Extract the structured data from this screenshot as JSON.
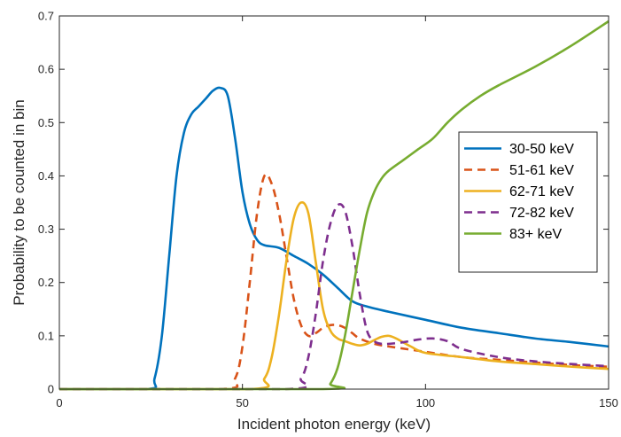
{
  "chart_data": {
    "type": "line",
    "title": "",
    "xlabel": "Incident photon energy (keV)",
    "ylabel": "Probability to be counted in bin",
    "xlim": [
      0,
      150
    ],
    "ylim": [
      0,
      0.7
    ],
    "xticks": [
      0,
      50,
      100,
      150
    ],
    "yticks": [
      0,
      0.1,
      0.2,
      0.3,
      0.4,
      0.5,
      0.6,
      0.7
    ],
    "grid": false,
    "legend_position": "right",
    "series": [
      {
        "name": "30-50 keV",
        "color": "#0072BD",
        "dash": "solid",
        "x": [
          0,
          24,
          26,
          28,
          30,
          32,
          34,
          36,
          38,
          40,
          42,
          44,
          46,
          48,
          50,
          52,
          54,
          56,
          60,
          64,
          68,
          72,
          76,
          80,
          84,
          90,
          100,
          110,
          120,
          130,
          140,
          150
        ],
        "y": [
          0,
          0,
          0.02,
          0.1,
          0.25,
          0.4,
          0.48,
          0.515,
          0.53,
          0.545,
          0.56,
          0.565,
          0.55,
          0.47,
          0.37,
          0.31,
          0.28,
          0.27,
          0.265,
          0.25,
          0.235,
          0.215,
          0.19,
          0.165,
          0.155,
          0.145,
          0.13,
          0.115,
          0.105,
          0.095,
          0.088,
          0.08
        ]
      },
      {
        "name": "51-61 keV",
        "color": "#D95319",
        "dash": "dashed",
        "x": [
          0,
          44,
          48,
          50,
          52,
          54,
          56,
          58,
          60,
          62,
          64,
          66,
          68,
          70,
          72,
          74,
          76,
          78,
          80,
          82,
          86,
          90,
          100,
          110,
          120,
          130,
          140,
          150
        ],
        "y": [
          0,
          0,
          0.02,
          0.08,
          0.2,
          0.33,
          0.4,
          0.385,
          0.33,
          0.25,
          0.17,
          0.12,
          0.1,
          0.105,
          0.115,
          0.12,
          0.12,
          0.115,
          0.105,
          0.095,
          0.085,
          0.08,
          0.07,
          0.06,
          0.055,
          0.05,
          0.045,
          0.042
        ]
      },
      {
        "name": "62-71 keV",
        "color": "#EDB120",
        "dash": "solid",
        "x": [
          0,
          52,
          56,
          58,
          60,
          62,
          64,
          66,
          68,
          70,
          72,
          74,
          76,
          78,
          80,
          82,
          84,
          86,
          88,
          90,
          92,
          96,
          100,
          110,
          120,
          130,
          140,
          150
        ],
        "y": [
          0,
          0,
          0.02,
          0.06,
          0.14,
          0.24,
          0.32,
          0.35,
          0.33,
          0.24,
          0.15,
          0.11,
          0.095,
          0.09,
          0.085,
          0.082,
          0.085,
          0.092,
          0.098,
          0.1,
          0.095,
          0.08,
          0.068,
          0.06,
          0.052,
          0.047,
          0.042,
          0.038
        ]
      },
      {
        "name": "72-82 keV",
        "color": "#7E2F8E",
        "dash": "dashed",
        "x": [
          0,
          62,
          66,
          68,
          70,
          72,
          74,
          76,
          78,
          80,
          82,
          84,
          86,
          88,
          90,
          94,
          98,
          102,
          106,
          110,
          120,
          130,
          140,
          150
        ],
        "y": [
          0,
          0,
          0.02,
          0.06,
          0.14,
          0.24,
          0.31,
          0.345,
          0.335,
          0.27,
          0.18,
          0.11,
          0.09,
          0.085,
          0.085,
          0.088,
          0.093,
          0.095,
          0.09,
          0.075,
          0.06,
          0.052,
          0.047,
          0.043
        ]
      },
      {
        "name": "83+ keV",
        "color": "#77AC30",
        "dash": "solid",
        "x": [
          0,
          72,
          74,
          76,
          78,
          80,
          82,
          84,
          86,
          88,
          90,
          94,
          98,
          102,
          106,
          110,
          115,
          120,
          130,
          140,
          150
        ],
        "y": [
          0,
          0,
          0.01,
          0.04,
          0.1,
          0.18,
          0.26,
          0.33,
          0.37,
          0.395,
          0.41,
          0.43,
          0.45,
          0.47,
          0.5,
          0.525,
          0.55,
          0.57,
          0.605,
          0.645,
          0.69
        ]
      }
    ]
  }
}
